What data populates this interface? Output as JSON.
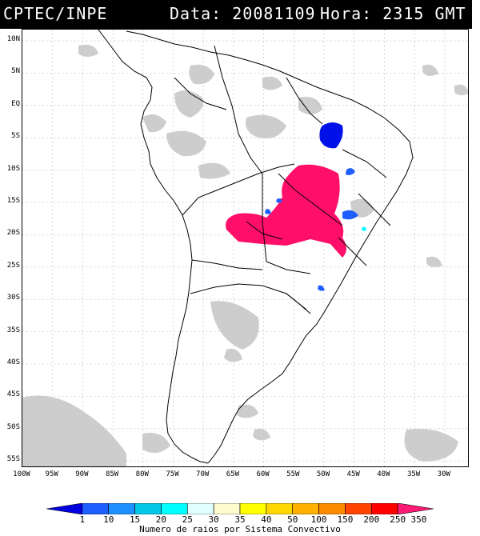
{
  "header": {
    "org": "CPTEC/INPE",
    "date_label": "Data: 20081109",
    "time_label": "Hora: 2315 GMT"
  },
  "lat_labels": [
    "10N",
    "5N",
    "EQ",
    "5S",
    "10S",
    "15S",
    "20S",
    "25S",
    "30S",
    "35S",
    "40S",
    "45S",
    "50S",
    "55S"
  ],
  "lon_labels": [
    "100W",
    "95W",
    "90W",
    "85W",
    "80W",
    "75W",
    "70W",
    "65W",
    "60W",
    "55W",
    "50W",
    "45W",
    "40W",
    "35W",
    "30W"
  ],
  "colorbar": {
    "labels": [
      "1",
      "10",
      "15",
      "20",
      "25",
      "30",
      "35",
      "40",
      "50",
      "100",
      "150",
      "200",
      "250",
      "350"
    ],
    "colors": [
      "#0000e0",
      "#1f5fff",
      "#1e90ff",
      "#00c8e6",
      "#00ffff",
      "#e0ffff",
      "#fffacd",
      "#ffff00",
      "#ffd700",
      "#ffb000",
      "#ff8c00",
      "#ff4500",
      "#ff0000",
      "#ff1a75"
    ],
    "caption": "Numero de raios por Sistema Convectivo"
  },
  "colors": {
    "convective_max": "#ff0f6a",
    "convective_low": "#0010e8",
    "convective_mid": "#1f5fff",
    "cloud": "#c8c8c8",
    "background": "#ffffff"
  }
}
